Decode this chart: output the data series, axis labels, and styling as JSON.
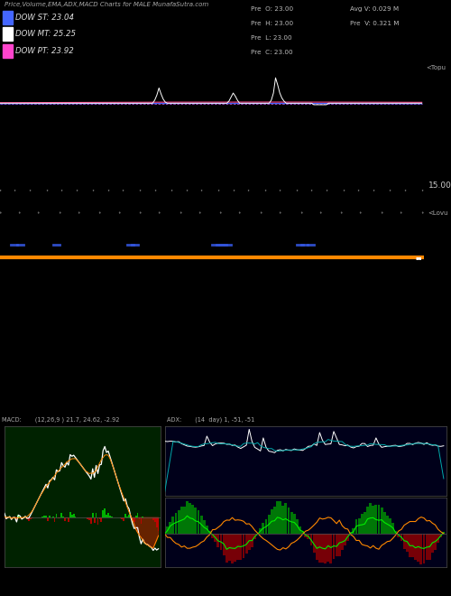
{
  "title": "Price,Volume,EMA,ADX,MACD Charts for MALE MunafaSutra.com",
  "bg_color": "#000000",
  "legend_items": [
    {
      "label": "DOW ST: 23.04",
      "color": "#4466ff"
    },
    {
      "label": "DOW MT: 25.25",
      "color": "#ffffff"
    },
    {
      "label": "DOW PT: 23.92",
      "color": "#ff44cc"
    }
  ],
  "info_left": [
    "Pre  O: 23.00",
    "Pre  H: 23.00",
    "Pre  L: 23.00",
    "Pre  C: 23.00"
  ],
  "info_right": [
    "Avg V: 0.029 M",
    "Pre  V: 0.321 M"
  ],
  "price_ytick": "15.00",
  "panel1_label": "<Topu",
  "panel2_label": "<Lovu",
  "macd_label": "MACD:       (12,26,9 ) 21.7, 24.62, -2.92",
  "adx_label": "ADX:       (14  day) 1, -51, -51"
}
